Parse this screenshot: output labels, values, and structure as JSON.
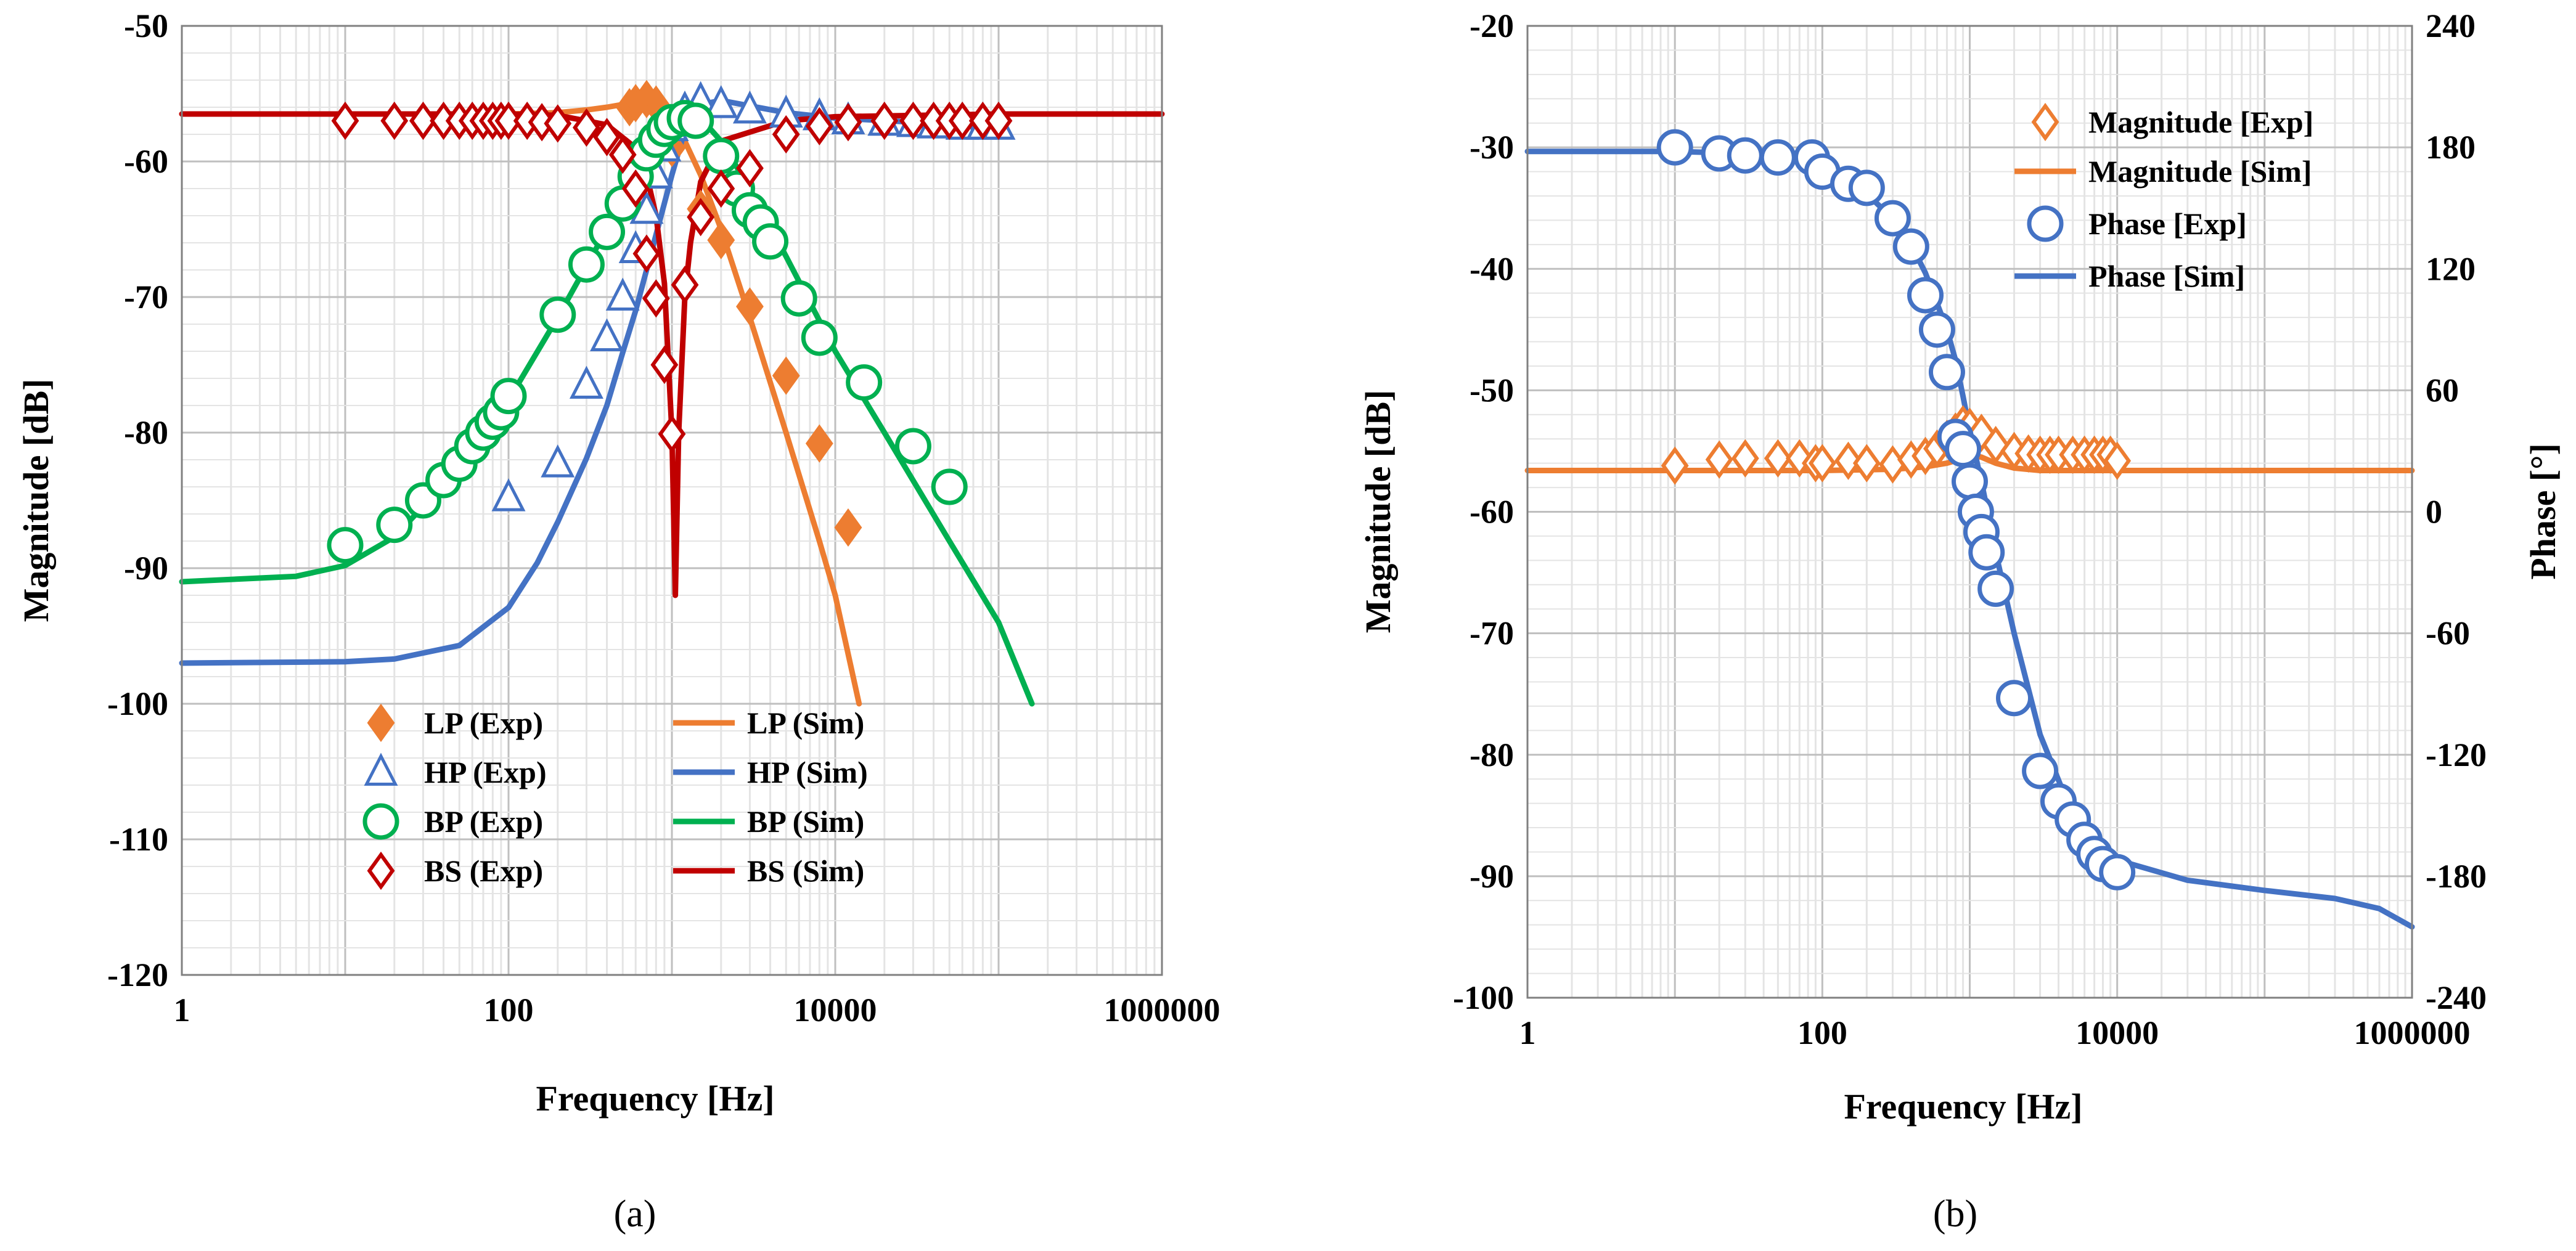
{
  "colors": {
    "orange": "#ED7D31",
    "blue": "#4472C4",
    "green": "#00B050",
    "red": "#C00000",
    "grid_major": "#BFBFBF",
    "grid_minor": "#E4E4E4",
    "axis": "#000000"
  },
  "chart_data": [
    {
      "type": "scatter",
      "caption": "(a)",
      "xlabel": "Frequency [Hz]",
      "ylabel": "Magnitude [dB]",
      "xscale": "log",
      "xlim": [
        1,
        1000000
      ],
      "ylim": [
        -120,
        -50
      ],
      "xticks": [
        1,
        100,
        10000,
        1000000
      ],
      "xtick_labels": [
        "1",
        "100",
        "10000",
        "1000000"
      ],
      "yticks": [
        -120,
        -110,
        -100,
        -90,
        -80,
        -70,
        -60,
        -50
      ],
      "ytick_labels": [
        "-120",
        "-110",
        "-100",
        "-90",
        "-80",
        "-70",
        "-60",
        "-50"
      ],
      "grid": true,
      "legend_position": "bottom-center",
      "series": [
        {
          "name": "LP (Exp)",
          "kind": "marker",
          "marker": "diamond-filled",
          "color": "orange",
          "x": [
            550,
            600,
            700,
            800,
            900,
            1000,
            1500,
            2000,
            3000,
            5000,
            8000,
            12000
          ],
          "y": [
            -56.0,
            -55.7,
            -55.4,
            -55.8,
            -57.0,
            -59.0,
            -63.5,
            -65.8,
            -70.7,
            -75.8,
            -80.8,
            -87.0
          ]
        },
        {
          "name": "HP (Exp)",
          "kind": "marker",
          "marker": "triangle-open",
          "color": "blue",
          "x": [
            100,
            200,
            300,
            400,
            500,
            600,
            700,
            800,
            900,
            1000,
            1200,
            1500,
            2000,
            3000,
            5000,
            8000,
            12000,
            20000,
            30000,
            40000,
            50000,
            60000,
            80000,
            100000
          ],
          "y": [
            -84.8,
            -82.3,
            -76.5,
            -73.0,
            -70.0,
            -66.5,
            -63.6,
            -61.0,
            -59.0,
            -57.5,
            -56.2,
            -55.5,
            -55.8,
            -56.2,
            -56.5,
            -56.7,
            -57.0,
            -57.1,
            -57.2,
            -57.3,
            -57.3,
            -57.4,
            -57.4,
            -57.4
          ]
        },
        {
          "name": "BP (Exp)",
          "kind": "marker",
          "marker": "circle-open",
          "color": "green",
          "x": [
            10,
            20,
            30,
            40,
            50,
            60,
            70,
            80,
            90,
            100,
            200,
            300,
            400,
            500,
            600,
            700,
            800,
            900,
            1000,
            1200,
            1400,
            2000,
            2500,
            3000,
            3500,
            4000,
            6000,
            8000,
            15000,
            30000,
            50000
          ],
          "y": [
            -88.3,
            -86.8,
            -85.0,
            -83.5,
            -82.3,
            -81.0,
            -80.0,
            -79.2,
            -78.5,
            -77.3,
            -71.3,
            -67.6,
            -65.2,
            -63.1,
            -61.1,
            -59.4,
            -58.4,
            -57.6,
            -57.1,
            -56.8,
            -57.0,
            -59.6,
            -62.0,
            -63.6,
            -64.5,
            -65.9,
            -70.1,
            -73.0,
            -76.3,
            -81.0,
            -84.0
          ]
        },
        {
          "name": "BS (Exp)",
          "kind": "marker",
          "marker": "diamond-open",
          "color": "red",
          "x": [
            10,
            20,
            30,
            40,
            50,
            60,
            70,
            80,
            90,
            100,
            130,
            160,
            200,
            300,
            400,
            500,
            600,
            700,
            800,
            900,
            1000,
            1200,
            1500,
            2000,
            3000,
            5000,
            8000,
            12000,
            20000,
            30000,
            40000,
            50000,
            60000,
            80000,
            100000
          ],
          "y": [
            -57.0,
            -57.0,
            -57.0,
            -57.0,
            -57.0,
            -57.0,
            -57.0,
            -57.0,
            -57.0,
            -57.0,
            -57.0,
            -57.1,
            -57.2,
            -57.5,
            -58.2,
            -59.5,
            -62.0,
            -66.8,
            -70.1,
            -75.0,
            -80.1,
            -69.1,
            -64.1,
            -62.0,
            -60.5,
            -58.0,
            -57.4,
            -57.1,
            -57.0,
            -57.0,
            -57.0,
            -57.0,
            -57.0,
            -57.0,
            -57.0
          ]
        },
        {
          "name": "LP (Sim)",
          "kind": "line",
          "color": "orange",
          "x": [
            1,
            100,
            200,
            300,
            400,
            500,
            600,
            700,
            800,
            900,
            1000,
            1200,
            1500,
            2000,
            3000,
            5000,
            8000,
            10000,
            14000
          ],
          "y": [
            -56.5,
            -56.5,
            -56.4,
            -56.2,
            -56.0,
            -55.8,
            -55.6,
            -55.6,
            -55.8,
            -56.2,
            -57.0,
            -58.5,
            -61.0,
            -65.0,
            -71.5,
            -80.0,
            -88.0,
            -92.0,
            -100.0
          ]
        },
        {
          "name": "HP (Sim)",
          "kind": "line",
          "color": "blue",
          "x": [
            1,
            10,
            20,
            50,
            100,
            150,
            200,
            300,
            400,
            500,
            600,
            800,
            1000,
            1200,
            1500,
            2000,
            3000,
            5000,
            10000,
            30000,
            50000,
            100000
          ],
          "y": [
            -97.0,
            -96.9,
            -96.7,
            -95.7,
            -92.9,
            -89.6,
            -86.6,
            -81.9,
            -78.0,
            -74.1,
            -71.0,
            -65.4,
            -61.0,
            -57.7,
            -55.8,
            -55.5,
            -55.9,
            -56.4,
            -56.8,
            -57.1,
            -57.2,
            -57.3
          ]
        },
        {
          "name": "BP (Sim)",
          "kind": "line",
          "color": "green",
          "x": [
            1,
            5,
            10,
            20,
            50,
            100,
            200,
            400,
            600,
            800,
            1000,
            1200,
            1500,
            2000,
            3000,
            5000,
            10000,
            20000,
            50000,
            100000,
            160000
          ],
          "y": [
            -91.0,
            -90.6,
            -89.8,
            -87.7,
            -82.6,
            -77.6,
            -71.5,
            -65.0,
            -61.0,
            -58.3,
            -57.0,
            -56.5,
            -56.8,
            -58.5,
            -62.0,
            -67.0,
            -74.0,
            -80.0,
            -88.0,
            -94.0,
            -100.0
          ]
        },
        {
          "name": "BS (Sim)",
          "kind": "line",
          "color": "red",
          "x": [
            1,
            100,
            200,
            400,
            600,
            700,
            800,
            900,
            1000,
            1050,
            1100,
            1200,
            1300,
            1500,
            2000,
            5000,
            10000,
            100000,
            1000000
          ],
          "y": [
            -56.5,
            -56.5,
            -56.6,
            -57.3,
            -59.0,
            -61.0,
            -64.0,
            -69.0,
            -80.0,
            -92.0,
            -80.0,
            -70.0,
            -66.0,
            -61.5,
            -58.5,
            -57.0,
            -56.7,
            -56.5,
            -56.5
          ]
        }
      ]
    },
    {
      "type": "scatter",
      "caption": "(b)",
      "xlabel": "Frequency [Hz]",
      "ylabel": "Magnitude [dB]",
      "y2label": "Phase [°]",
      "xscale": "log",
      "xlim": [
        1,
        1000000
      ],
      "ylim": [
        -100,
        -20
      ],
      "y2lim": [
        -240,
        240
      ],
      "xticks": [
        1,
        100,
        10000,
        1000000
      ],
      "xtick_labels": [
        "1",
        "100",
        "10000",
        "1000000"
      ],
      "yticks": [
        -100,
        -90,
        -80,
        -70,
        -60,
        -50,
        -40,
        -30,
        -20
      ],
      "ytick_labels": [
        "-100",
        "-90",
        "-80",
        "-70",
        "-60",
        "-50",
        "-40",
        "-30",
        "-20"
      ],
      "y2ticks": [
        -240,
        -180,
        -120,
        -60,
        0,
        60,
        120,
        180,
        240
      ],
      "y2tick_labels": [
        "-240",
        "-180",
        "-120",
        "-60",
        "0",
        "60",
        "120",
        "180",
        "240"
      ],
      "grid": true,
      "legend_position": "top-right",
      "series": [
        {
          "name": "Magnitude [Exp]",
          "kind": "marker",
          "marker": "diamond-open",
          "color": "orange",
          "axis": "y",
          "x": [
            10,
            20,
            30,
            50,
            70,
            90,
            100,
            150,
            200,
            300,
            400,
            500,
            600,
            700,
            800,
            900,
            1000,
            1200,
            1500,
            2000,
            2500,
            3000,
            3500,
            4000,
            5000,
            6000,
            7000,
            8000,
            9000,
            10000
          ],
          "y": [
            -56.2,
            -55.7,
            -55.6,
            -55.6,
            -55.6,
            -56.0,
            -56.0,
            -55.8,
            -56.0,
            -56.1,
            -55.7,
            -55.4,
            -54.8,
            -54.0,
            -53.4,
            -52.8,
            -53.0,
            -53.5,
            -54.5,
            -55.0,
            -55.2,
            -55.3,
            -55.3,
            -55.3,
            -55.3,
            -55.3,
            -55.3,
            -55.3,
            -55.3,
            -55.8
          ]
        },
        {
          "name": "Magnitude [Sim]",
          "kind": "line",
          "color": "orange",
          "axis": "y",
          "x": [
            1,
            100,
            300,
            500,
            700,
            900,
            1000,
            1200,
            1500,
            2000,
            3000,
            10000,
            100000,
            1000000
          ],
          "y": [
            -56.6,
            -56.6,
            -56.5,
            -56.3,
            -56.0,
            -55.6,
            -55.3,
            -55.5,
            -56.0,
            -56.4,
            -56.6,
            -56.6,
            -56.6,
            -56.6
          ]
        },
        {
          "name": "Phase [Exp]",
          "kind": "marker",
          "marker": "circle-open",
          "color": "blue",
          "axis": "y2",
          "x": [
            10,
            20,
            30,
            50,
            85,
            100,
            150,
            200,
            300,
            400,
            500,
            600,
            700,
            800,
            900,
            1000,
            1100,
            1200,
            1300,
            1500,
            2000,
            3000,
            4000,
            5000,
            6000,
            7000,
            8000,
            10000
          ],
          "y": [
            180,
            177,
            176,
            175,
            175,
            168,
            162,
            160,
            145,
            131,
            107,
            90,
            69,
            37,
            31,
            15,
            0,
            -10,
            -20,
            -38,
            -92,
            -128,
            -143,
            -152,
            -162,
            -169,
            -174,
            -178
          ]
        },
        {
          "name": "Phase [Sim]",
          "kind": "line",
          "color": "blue",
          "axis": "y2",
          "x": [
            1,
            10,
            30,
            50,
            100,
            150,
            200,
            300,
            400,
            500,
            600,
            700,
            800,
            900,
            1000,
            1200,
            1500,
            2000,
            3000,
            5000,
            10000,
            30000,
            100000,
            300000,
            600000,
            1000000
          ],
          "y": [
            178,
            178,
            177,
            175,
            170,
            162,
            157,
            145,
            132,
            118,
            103,
            90,
            75,
            57,
            40,
            15,
            -20,
            -60,
            -110,
            -150,
            -172,
            -182,
            -187,
            -191,
            -196,
            -205
          ]
        }
      ]
    }
  ]
}
